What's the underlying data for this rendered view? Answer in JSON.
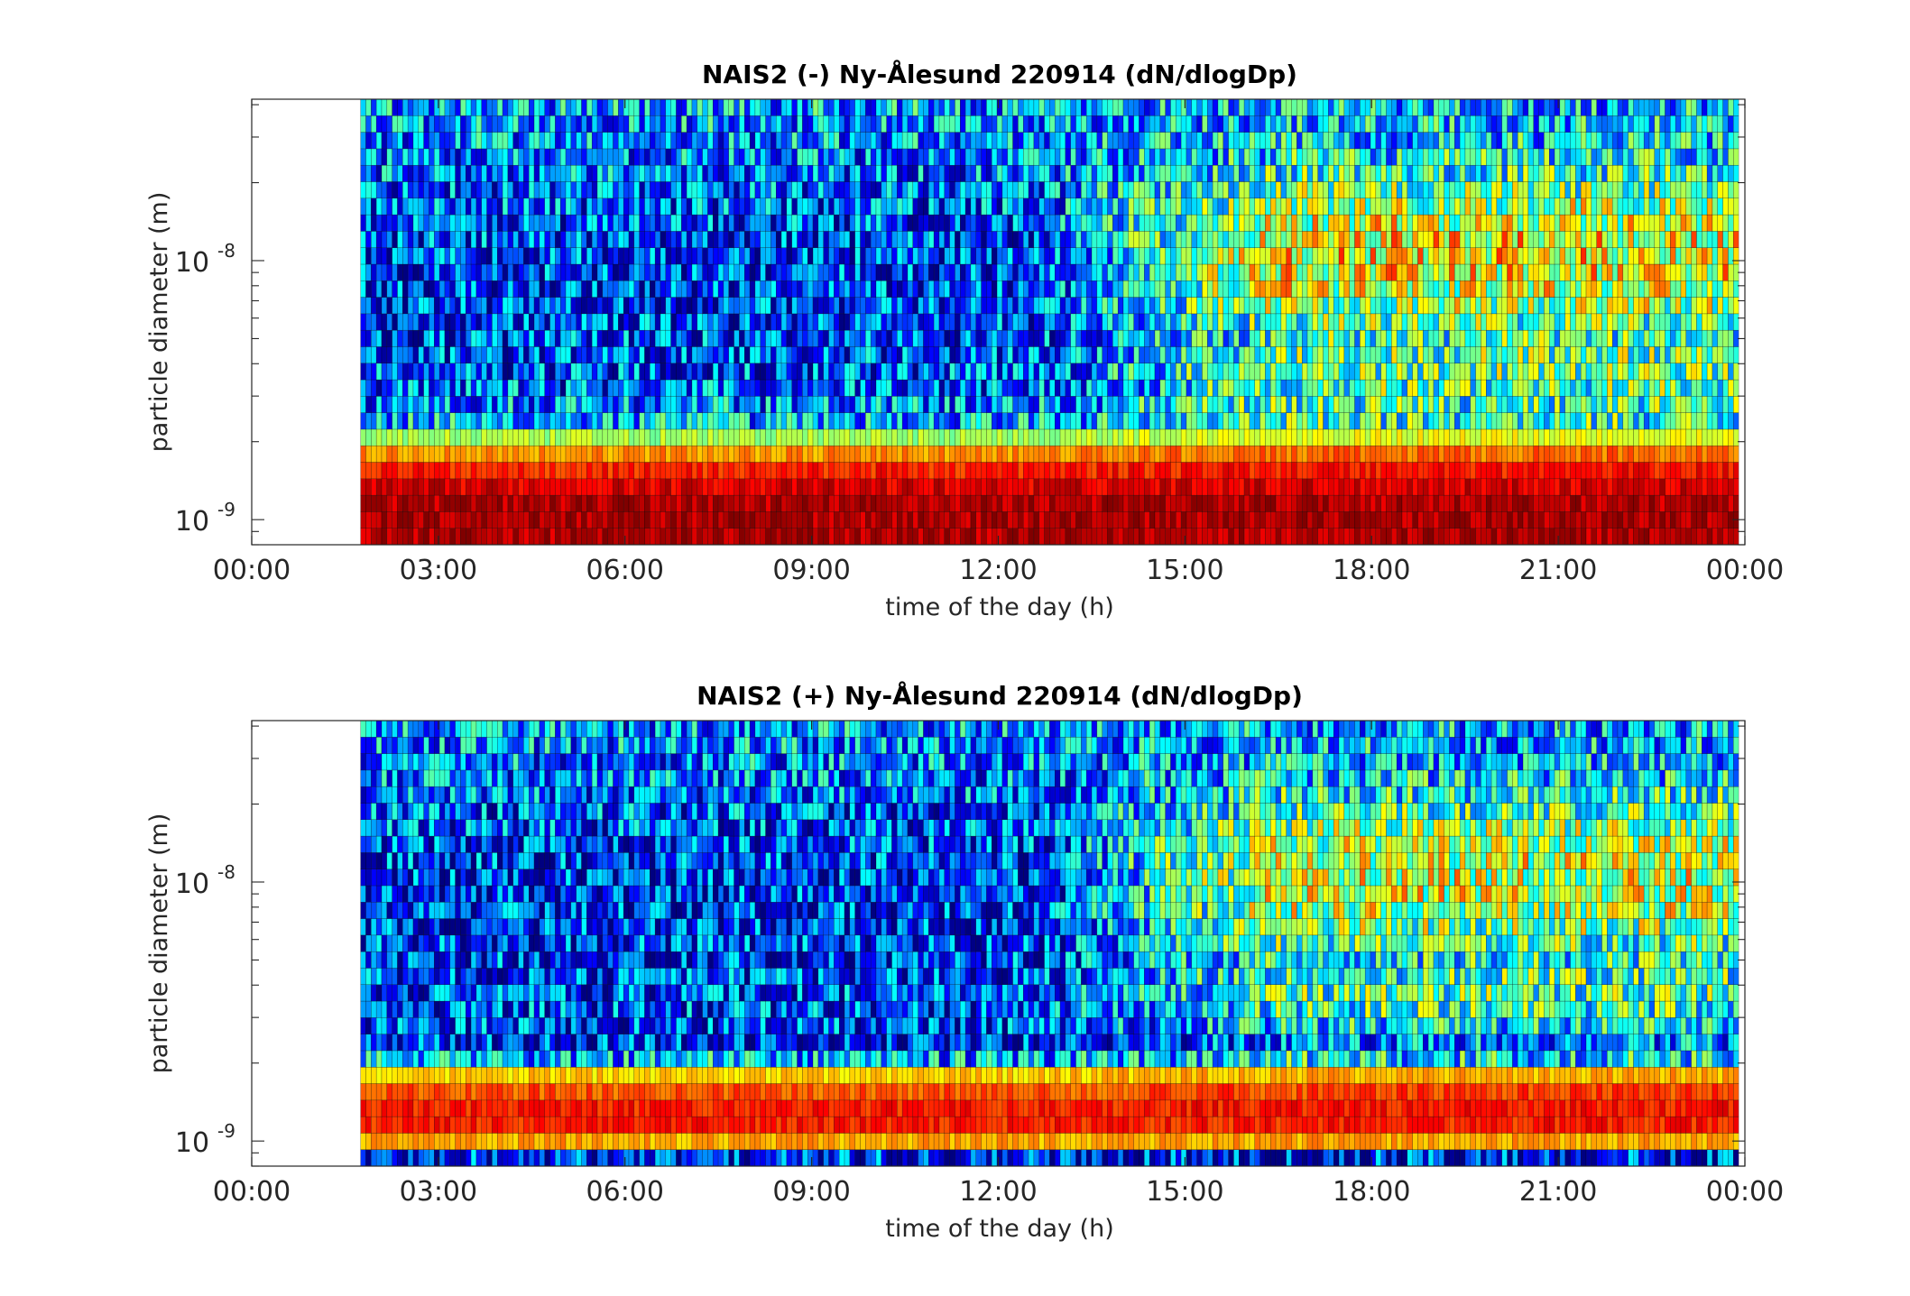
{
  "chart_data": [
    {
      "type": "heatmap",
      "title": "NAIS2 (-) Ny-Ålesund 220914 (dN/dlogDp)",
      "xlabel": "time of the day (h)",
      "ylabel": "particle diameter (m)",
      "x_ticks": [
        "00:00",
        "03:00",
        "06:00",
        "09:00",
        "12:00",
        "15:00",
        "18:00",
        "21:00",
        "00:00"
      ],
      "y_ticks": [
        {
          "base": "10",
          "exp": "-9"
        },
        {
          "base": "10",
          "exp": "-8"
        }
      ],
      "y_scale": "log",
      "xlim_hours": [
        0,
        24
      ],
      "ylim_m": [
        8e-10,
        4.2e-08
      ],
      "data_start_hour": 1.75,
      "data_end_hour": 23.9,
      "colormap": "jet",
      "levels_note": "relative intensity 0 (dark blue) to 1 (dark red)",
      "profile": [
        {
          "d": 9e-10,
          "v": 0.95
        },
        {
          "d": 1.1e-09,
          "v": 0.96
        },
        {
          "d": 1.3e-09,
          "v": 0.92
        },
        {
          "d": 1.6e-09,
          "v": 0.83
        },
        {
          "d": 1.9e-09,
          "v": 0.68
        },
        {
          "d": 2.4e-09,
          "v": 0.3
        },
        {
          "d": 3.2e-09,
          "v": 0.22
        },
        {
          "d": 4.5e-09,
          "v": 0.2
        },
        {
          "d": 6.5e-09,
          "v": 0.18
        },
        {
          "d": 1e-08,
          "v": 0.17
        },
        {
          "d": 1.6e-08,
          "v": 0.22
        },
        {
          "d": 2.5e-08,
          "v": 0.25
        },
        {
          "d": 4e-08,
          "v": 0.3
        }
      ],
      "event": {
        "start_hour": 12.5,
        "ramp_hours": 4,
        "d_center_m": 1e-08,
        "boost": 0.45
      }
    },
    {
      "type": "heatmap",
      "title": "NAIS2 (+) Ny-Ålesund 220914 (dN/dlogDp)",
      "xlabel": "time of the day (h)",
      "ylabel": "particle diameter (m)",
      "x_ticks": [
        "00:00",
        "03:00",
        "06:00",
        "09:00",
        "12:00",
        "15:00",
        "18:00",
        "21:00",
        "00:00"
      ],
      "y_ticks": [
        {
          "base": "10",
          "exp": "-9"
        },
        {
          "base": "10",
          "exp": "-8"
        }
      ],
      "y_scale": "log",
      "xlim_hours": [
        0,
        24
      ],
      "ylim_m": [
        8e-10,
        4.2e-08
      ],
      "data_start_hour": 1.75,
      "data_end_hour": 23.9,
      "colormap": "jet",
      "levels_note": "relative intensity 0 (dark blue) to 1 (dark red)",
      "profile": [
        {
          "d": 8.6e-10,
          "v": 0.15
        },
        {
          "d": 9.6e-10,
          "v": 0.66
        },
        {
          "d": 1.1e-09,
          "v": 0.84
        },
        {
          "d": 1.3e-09,
          "v": 0.86
        },
        {
          "d": 1.6e-09,
          "v": 0.78
        },
        {
          "d": 1.85e-09,
          "v": 0.64
        },
        {
          "d": 2.2e-09,
          "v": 0.12
        },
        {
          "d": 3e-09,
          "v": 0.2
        },
        {
          "d": 4.5e-09,
          "v": 0.18
        },
        {
          "d": 7e-09,
          "v": 0.17
        },
        {
          "d": 1e-08,
          "v": 0.16
        },
        {
          "d": 1.6e-08,
          "v": 0.2
        },
        {
          "d": 2.5e-08,
          "v": 0.24
        },
        {
          "d": 4e-08,
          "v": 0.28
        }
      ],
      "event": {
        "start_hour": 12.5,
        "ramp_hours": 4,
        "d_center_m": 1e-08,
        "boost": 0.42
      }
    }
  ]
}
